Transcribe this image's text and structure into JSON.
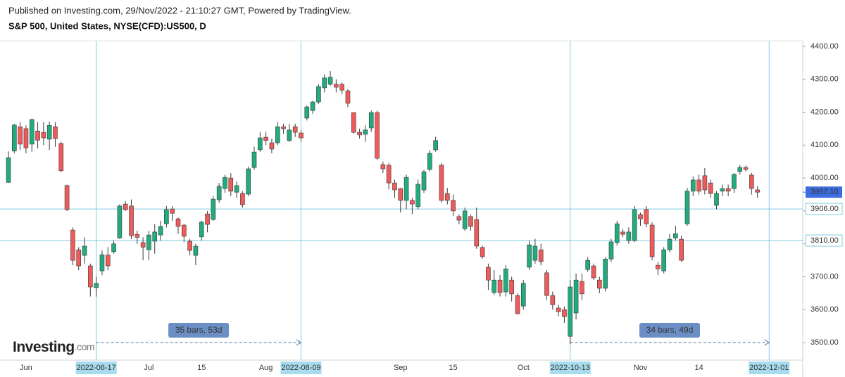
{
  "header": {
    "published": "Published on Investing.com, 29/Nov/2022 - 21:10:27 GMT, Powered by TradingView.",
    "symbol": "S&P 500, United States, NYSE(CFD):US500, D"
  },
  "logo": {
    "name": "Investing",
    "suffix": ".com"
  },
  "chart_data": {
    "type": "candlestick",
    "categories": [
      null,
      null,
      null,
      "Jun",
      null,
      null,
      null,
      null,
      null,
      null,
      null,
      null,
      null,
      null,
      null,
      "2022-06-17",
      null,
      null,
      null,
      null,
      null,
      null,
      null,
      null,
      "Jul",
      null,
      null,
      null,
      null,
      null,
      null,
      null,
      null,
      "15",
      null,
      null,
      null,
      null,
      null,
      null,
      null,
      null,
      null,
      null,
      "Aug",
      null,
      null,
      null,
      null,
      null,
      "2022-08-09",
      null,
      null,
      null,
      null,
      null,
      null,
      null,
      null,
      null,
      null,
      null,
      null,
      null,
      null,
      null,
      null,
      "Sep",
      null,
      null,
      null,
      null,
      null,
      null,
      null,
      null,
      "15",
      null,
      null,
      null,
      null,
      null,
      null,
      null,
      null,
      null,
      null,
      null,
      "Oct",
      null,
      null,
      null,
      null,
      null,
      null,
      null,
      "2022-10-13",
      null,
      null,
      null,
      null,
      null,
      null,
      null,
      null,
      null,
      null,
      null,
      "Nov",
      null,
      null,
      null,
      null,
      null,
      null,
      null,
      null,
      null,
      "14",
      null,
      null,
      null,
      null,
      null,
      null,
      null,
      null,
      null,
      null,
      null,
      "2022-12-01"
    ],
    "open": [
      3987,
      4082,
      4156,
      4150,
      4103,
      4143,
      4139,
      4118,
      4156,
      4105,
      3977,
      3842,
      3782,
      3765,
      3733,
      3667,
      3718,
      3766,
      3776,
      3818,
      3921,
      3915,
      3829,
      3804,
      3782,
      3808,
      3827,
      3861,
      3906,
      3876,
      3857,
      3808,
      3765,
      3821,
      3891,
      3874,
      3934,
      3968,
      4000,
      3957,
      3953,
      3951,
      4032,
      4086,
      4124,
      4107,
      4107,
      4156,
      4114,
      4156,
      4137,
      4182,
      4205,
      4231,
      4274,
      4285,
      4285,
      4285,
      4265,
      4199,
      4139,
      4133,
      4152,
      4199,
      4041,
      4039,
      3985,
      3968,
      3932,
      3932,
      3913,
      3964,
      4026,
      4086,
      4039,
      3953,
      3932,
      3883,
      3846,
      3883,
      3874,
      3789,
      3729,
      3652,
      3690,
      3654,
      3690,
      3643,
      3611,
      3729,
      3750,
      3782,
      3712,
      3643,
      3605,
      3600,
      3519,
      3590,
      3686,
      3722,
      3733,
      3690,
      3665,
      3754,
      3804,
      3836,
      3810,
      3810,
      3889,
      3904,
      3857,
      3735,
      3718,
      3782,
      3818,
      3814,
      3861,
      3960,
      3994,
      4007,
      3985,
      3917,
      3960,
      3968,
      3968,
      4020,
      4032,
      4009,
      3964,
      null,
      null
    ],
    "high": [
      4081,
      4165,
      4170,
      4160,
      4180,
      4170,
      4170,
      4172,
      4170,
      4110,
      3980,
      3850,
      3790,
      3820,
      3740,
      3700,
      3780,
      3790,
      3810,
      3920,
      3930,
      3935,
      3840,
      3820,
      3840,
      3860,
      3870,
      3915,
      3915,
      3880,
      3860,
      3815,
      3800,
      3870,
      3900,
      3945,
      3985,
      4010,
      4015,
      3990,
      3960,
      4035,
      4095,
      4140,
      4140,
      4120,
      4170,
      4165,
      4165,
      4165,
      4145,
      4220,
      4235,
      4285,
      4315,
      4325,
      4300,
      4290,
      4270,
      4200,
      4150,
      4160,
      4205,
      4205,
      4050,
      4045,
      3995,
      3970,
      4010,
      3940,
      3995,
      4025,
      4085,
      4125,
      4045,
      3970,
      3950,
      3890,
      3910,
      3890,
      3910,
      3795,
      3740,
      3720,
      3705,
      3735,
      3700,
      3650,
      3690,
      3810,
      3815,
      3800,
      3720,
      3655,
      3615,
      3610,
      3690,
      3710,
      3710,
      3760,
      3740,
      3700,
      3760,
      3815,
      3870,
      3845,
      3850,
      3915,
      3895,
      3915,
      3865,
      3745,
      3790,
      3830,
      3855,
      3825,
      3970,
      4005,
      4010,
      4030,
      3995,
      3960,
      3980,
      3980,
      4015,
      4040,
      4038,
      4015,
      3975,
      null,
      null
    ],
    "low": [
      3985,
      4075,
      4085,
      4075,
      4080,
      4090,
      4100,
      4085,
      4095,
      4018,
      3900,
      3735,
      3720,
      3740,
      3640,
      3640,
      3705,
      3720,
      3770,
      3815,
      3900,
      3815,
      3800,
      3750,
      3750,
      3770,
      3810,
      3850,
      3870,
      3830,
      3805,
      3765,
      3735,
      3810,
      3835,
      3870,
      3925,
      3955,
      3945,
      3940,
      3910,
      3945,
      4025,
      4080,
      4100,
      4075,
      4100,
      4135,
      4110,
      4125,
      4110,
      4175,
      4195,
      4225,
      4260,
      4280,
      4260,
      4255,
      4215,
      4135,
      4120,
      4110,
      4140,
      4055,
      4015,
      3965,
      3940,
      3895,
      3905,
      3890,
      3905,
      3955,
      4020,
      4080,
      3925,
      3920,
      3885,
      3860,
      3840,
      3840,
      3785,
      3755,
      3660,
      3645,
      3640,
      3640,
      3625,
      3585,
      3600,
      3720,
      3740,
      3735,
      3630,
      3600,
      3580,
      3560,
      3495,
      3570,
      3630,
      3715,
      3690,
      3650,
      3655,
      3745,
      3795,
      3820,
      3800,
      3805,
      3855,
      3850,
      3750,
      3705,
      3710,
      3775,
      3810,
      3745,
      3855,
      3945,
      3950,
      3950,
      3940,
      3905,
      3945,
      3945,
      3955,
      4010,
      4020,
      3950,
      3940,
      null,
      null
    ],
    "close": [
      4062,
      4161,
      4103,
      4092,
      4178,
      4115,
      4122,
      4160,
      4120,
      4022,
      3904,
      3750,
      3733,
      3793,
      3669,
      3680,
      3767,
      3733,
      3800,
      3915,
      3904,
      3825,
      3820,
      3790,
      3827,
      3836,
      3853,
      3904,
      3893,
      3853,
      3823,
      3780,
      3793,
      3866,
      3859,
      3936,
      3975,
      4002,
      3960,
      3977,
      3919,
      4028,
      4079,
      4122,
      4114,
      4088,
      4156,
      4150,
      4146,
      4139,
      4122,
      4216,
      4231,
      4278,
      4304,
      4306,
      4276,
      4267,
      4227,
      4139,
      4131,
      4146,
      4199,
      4060,
      4028,
      3985,
      3964,
      3932,
      4002,
      3921,
      3981,
      4019,
      4075,
      4114,
      3932,
      3932,
      3900,
      3872,
      3900,
      3853,
      3793,
      3761,
      3690,
      3690,
      3652,
      3724,
      3648,
      3588,
      3680,
      3797,
      3793,
      3746,
      3643,
      3615,
      3594,
      3579,
      3669,
      3690,
      3648,
      3750,
      3697,
      3665,
      3754,
      3806,
      3861,
      3829,
      3836,
      3904,
      3876,
      3861,
      3761,
      3724,
      3782,
      3814,
      3831,
      3750,
      3960,
      3994,
      3960,
      3964,
      3953,
      3953,
      3968,
      3960,
      4011,
      4032,
      4026,
      3968,
      3957.1,
      null,
      null
    ],
    "up_color": "#22ab7c",
    "down_color": "#ef5a5a",
    "wick_color": "#3a3a3a",
    "ylim": [
      3451,
      4417
    ],
    "yticks": [
      {
        "value": 3500,
        "label": "3500.00"
      },
      {
        "value": 3600,
        "label": "3600.00"
      },
      {
        "value": 3700,
        "label": "3700.00"
      },
      {
        "value": 3800,
        "label": "3800.00"
      },
      {
        "value": 3900,
        "label": "3900.00"
      },
      {
        "value": 4000,
        "label": "4000.00"
      },
      {
        "value": 4100,
        "label": "4100.00"
      },
      {
        "value": 4200,
        "label": "4200.00"
      },
      {
        "value": 4300,
        "label": "4300.00"
      },
      {
        "value": 4400,
        "label": "4400.00"
      }
    ],
    "price_lines": [
      {
        "value": 3906,
        "label": "3906.00"
      },
      {
        "value": 3810,
        "label": "3810.00"
      }
    ],
    "last_price": {
      "value": 3957.1,
      "label": "3957.10"
    },
    "ranges": [
      {
        "label": "35 bars, 53d",
        "start": "2022-06-17",
        "end": "2022-08-09"
      },
      {
        "label": "34 bars, 49d",
        "start": "2022-10-13",
        "end": "2022-12-01"
      }
    ]
  }
}
